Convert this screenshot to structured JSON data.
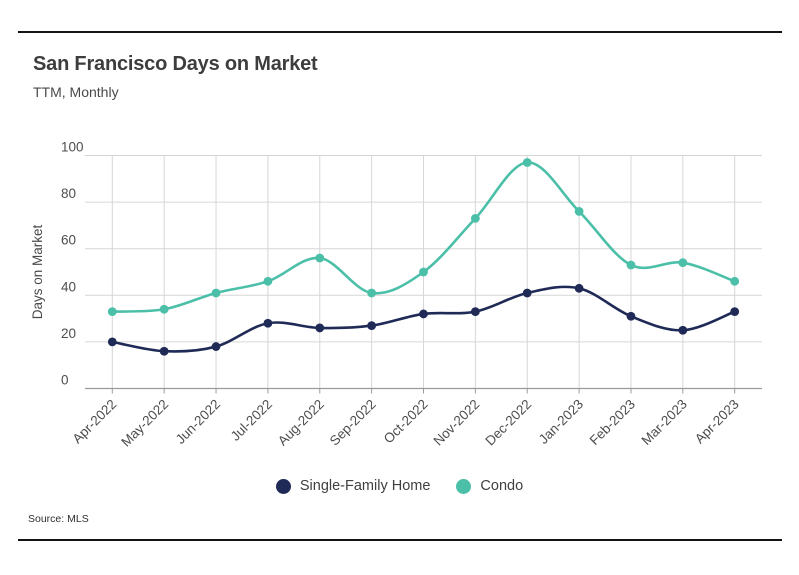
{
  "header": {
    "title": "San Francisco Days on Market",
    "subtitle": "TTM, Monthly"
  },
  "chart_data": {
    "type": "line",
    "categories": [
      "Apr-2022",
      "May-2022",
      "Jun-2022",
      "Jul-2022",
      "Aug-2022",
      "Sep-2022",
      "Oct-2022",
      "Nov-2022",
      "Dec-2022",
      "Jan-2023",
      "Feb-2023",
      "Mar-2023",
      "Apr-2023"
    ],
    "series": [
      {
        "name": "Single-Family Home",
        "color": "#1F2A56",
        "values": [
          20,
          16,
          18,
          28,
          26,
          27,
          32,
          33,
          41,
          43,
          31,
          25,
          33
        ]
      },
      {
        "name": "Condo",
        "color": "#4BBFA8",
        "values": [
          33,
          34,
          41,
          46,
          56,
          41,
          50,
          73,
          97,
          76,
          53,
          54,
          46
        ]
      }
    ],
    "title": "San Francisco Days on Market",
    "subtitle": "TTM, Monthly",
    "xlabel": "",
    "ylabel": "Days on Market",
    "ylim": [
      0,
      100
    ],
    "yticks": [
      0,
      20,
      40,
      60,
      80,
      100
    ],
    "grid": true,
    "legend_position": "bottom"
  },
  "colors": {
    "grid_line": "#d6d6d6",
    "axis_line": "#9b9b9b",
    "tick_text": "#4d4d4d",
    "rule": "#141414"
  },
  "footer": {
    "source_label": "Source: MLS"
  }
}
